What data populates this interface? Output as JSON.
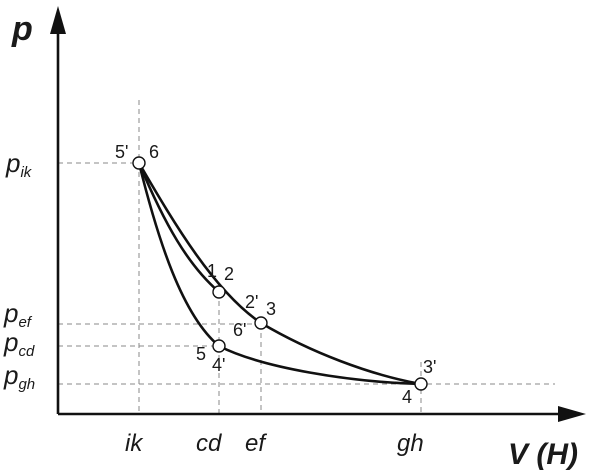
{
  "axes": {
    "y_title": "p",
    "x_title": "V (H)"
  },
  "pressure_labels": [
    {
      "main": "p",
      "sub": "ik"
    },
    {
      "main": "p",
      "sub": "ef"
    },
    {
      "main": "p",
      "sub": "cd"
    },
    {
      "main": "p",
      "sub": "gh"
    }
  ],
  "volume_labels": [
    "ik",
    "cd",
    "ef",
    "gh"
  ],
  "points": {
    "p5p_6": {
      "left": "5'",
      "right": "6"
    },
    "p1_2": {
      "left": "1",
      "right": "2"
    },
    "p2p_3": {
      "left": "2'",
      "right": "3"
    },
    "p6p": {
      "left": "6'"
    },
    "p5_4p": {
      "left": "5",
      "right": "4'"
    },
    "p4_3p": {
      "top": "3'",
      "bottom": "4"
    }
  },
  "colors": {
    "line": "#111111",
    "guide": "#8a8a8a"
  }
}
